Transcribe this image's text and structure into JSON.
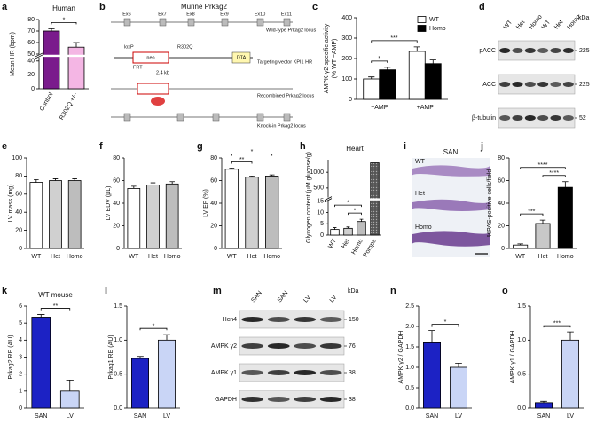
{
  "chart_data": [
    {
      "panel": "a",
      "type": "bar",
      "title": "Human",
      "ylabel": [
        "Mean HR (bpm)"
      ],
      "categories": [
        "Control",
        "R302Q +/−"
      ],
      "values": [
        70,
        56
      ],
      "errors": [
        2,
        4
      ],
      "colors": [
        "#7a1b8c",
        "#f4b6e4"
      ],
      "ylim": [
        0,
        80
      ],
      "axis_break": [
        45,
        50
      ],
      "yticks": [
        0,
        20,
        40,
        50,
        60,
        70,
        80
      ],
      "comparisons": [
        {
          "pair": [
            0,
            1
          ],
          "label": "*"
        }
      ]
    },
    {
      "panel": "c",
      "type": "bar",
      "ylabel": [
        "AMPK-γ2-specific activity",
        "(% WT −AMP)"
      ],
      "categories": [
        "−AMP",
        "+AMP"
      ],
      "series": [
        {
          "name": "WT",
          "color": "#ffffff",
          "values": [
            100,
            235
          ],
          "errors": [
            10,
            22
          ]
        },
        {
          "name": "Homo",
          "color": "#000000",
          "values": [
            145,
            175
          ],
          "errors": [
            12,
            18
          ]
        }
      ],
      "ylim": [
        0,
        400
      ],
      "yticks": [
        0,
        100,
        200,
        300,
        400
      ],
      "legend": "top-right",
      "comparisons": [
        {
          "pair": [
            0,
            1
          ],
          "label": "*"
        },
        {
          "pair": [
            0,
            2
          ],
          "label": "***"
        }
      ]
    },
    {
      "panel": "e",
      "type": "bar",
      "ylabel": [
        "LV mass (mg)"
      ],
      "categories": [
        "WT",
        "Het",
        "Homo"
      ],
      "values": [
        73,
        75,
        75
      ],
      "errors": [
        3,
        2,
        2
      ],
      "colors": [
        "#ffffff",
        "#d0d0d0",
        "#bdbdbd"
      ],
      "ylim": [
        0,
        100
      ],
      "yticks": [
        0,
        20,
        40,
        60,
        80,
        100
      ],
      "comparisons": []
    },
    {
      "panel": "f",
      "type": "bar",
      "ylabel": [
        "LV EDV (µL)"
      ],
      "categories": [
        "WT",
        "Het",
        "Homo"
      ],
      "values": [
        53,
        56,
        57
      ],
      "errors": [
        2,
        2,
        2
      ],
      "colors": [
        "#ffffff",
        "#d0d0d0",
        "#bdbdbd"
      ],
      "ylim": [
        0,
        80
      ],
      "yticks": [
        0,
        20,
        40,
        60,
        80
      ],
      "comparisons": []
    },
    {
      "panel": "g",
      "type": "bar",
      "ylabel": [
        "LV EF (%)"
      ],
      "categories": [
        "WT",
        "Het",
        "Homo"
      ],
      "values": [
        70,
        63,
        64
      ],
      "errors": [
        1,
        1,
        1
      ],
      "colors": [
        "#ffffff",
        "#d0d0d0",
        "#bdbdbd"
      ],
      "ylim": [
        0,
        80
      ],
      "yticks": [
        0,
        20,
        40,
        60,
        80
      ],
      "comparisons": [
        {
          "pair": [
            0,
            1
          ],
          "label": "**"
        },
        {
          "pair": [
            0,
            2
          ],
          "label": "*"
        }
      ]
    },
    {
      "panel": "h",
      "type": "bar",
      "title": "Heart",
      "ylabel": [
        "Glycogen content (µM glucose/g)"
      ],
      "categories": [
        "WT",
        "Het",
        "Homo",
        "Pompe"
      ],
      "values": [
        2.5,
        3,
        6,
        1300
      ],
      "errors": [
        0.8,
        0.6,
        1,
        0
      ],
      "colors": [
        "#ffffff",
        "#d0d0d0",
        "#bdbdbd",
        "#555555"
      ],
      "hatched": [
        false,
        false,
        false,
        true
      ],
      "ylim": [
        0,
        1400
      ],
      "axis_break": [
        15,
        200
      ],
      "yticks": [
        0,
        5,
        10,
        15,
        500,
        1000
      ],
      "comparisons": [
        {
          "pair": [
            1,
            2
          ],
          "label": "*"
        },
        {
          "pair": [
            0,
            2
          ],
          "label": "*"
        }
      ]
    },
    {
      "panel": "j",
      "type": "bar",
      "ylabel": [
        "%PAS-positive cells/field"
      ],
      "categories": [
        "WT",
        "Het",
        "Homo"
      ],
      "values": [
        3,
        22,
        54
      ],
      "errors": [
        1,
        3,
        5
      ],
      "colors": [
        "#ffffff",
        "#c8c8c8",
        "#000000"
      ],
      "ylim": [
        0,
        80
      ],
      "yticks": [
        0,
        20,
        40,
        60,
        80
      ],
      "comparisons": [
        {
          "pair": [
            0,
            1
          ],
          "label": "***"
        },
        {
          "pair": [
            1,
            2
          ],
          "label": "****"
        },
        {
          "pair": [
            0,
            2
          ],
          "label": "****"
        }
      ]
    },
    {
      "panel": "k",
      "type": "bar",
      "title": "WT mouse",
      "ylabel": [
        "Prkag2 RE (AU)"
      ],
      "categories": [
        "SAN",
        "LV"
      ],
      "values": [
        5.35,
        1.0
      ],
      "errors": [
        0.15,
        0.65
      ],
      "colors": [
        "#1c22c4",
        "#c9d5f6"
      ],
      "ylim": [
        0,
        6
      ],
      "yticks": [
        0,
        1,
        2,
        3,
        4,
        5,
        6
      ],
      "comparisons": [
        {
          "pair": [
            0,
            1
          ],
          "label": "**"
        }
      ]
    },
    {
      "panel": "l",
      "type": "bar",
      "ylabel": [
        "Prkag1 RE (AU)"
      ],
      "categories": [
        "SAN",
        "LV"
      ],
      "values": [
        0.73,
        1.0
      ],
      "errors": [
        0.03,
        0.08
      ],
      "colors": [
        "#1c22c4",
        "#c9d5f6"
      ],
      "ylim": [
        0,
        1.5
      ],
      "yticks": [
        {
          "value": 0,
          "label": "0.0"
        },
        0.5,
        {
          "value": 1,
          "label": "1.0"
        },
        1.5
      ],
      "comparisons": [
        {
          "pair": [
            0,
            1
          ],
          "label": "*"
        }
      ]
    },
    {
      "panel": "n",
      "type": "bar",
      "ylabel": [
        "AMPK γ2 / GAPDH"
      ],
      "categories": [
        "SAN",
        "LV"
      ],
      "values": [
        1.6,
        1.0
      ],
      "errors": [
        0.3,
        0.1
      ],
      "colors": [
        "#1c22c4",
        "#c9d5f6"
      ],
      "ylim": [
        0,
        2.5
      ],
      "yticks": [
        {
          "value": 0,
          "label": "0.0"
        },
        0.5,
        {
          "value": 1,
          "label": "1.0"
        },
        1.5,
        {
          "value": 2,
          "label": "2.0"
        },
        2.5
      ],
      "comparisons": [
        {
          "pair": [
            0,
            1
          ],
          "label": "*"
        }
      ]
    },
    {
      "panel": "o",
      "type": "bar",
      "ylabel": [
        "AMPK γ1 / GAPDH"
      ],
      "categories": [
        "SAN",
        "LV"
      ],
      "values": [
        0.08,
        1.0
      ],
      "errors": [
        0.02,
        0.12
      ],
      "colors": [
        "#1c22c4",
        "#c9d5f6"
      ],
      "ylim": [
        0,
        1.5
      ],
      "yticks": [
        {
          "value": 0,
          "label": "0.0"
        },
        0.5,
        {
          "value": 1,
          "label": "1.0"
        },
        1.5
      ],
      "comparisons": [
        {
          "pair": [
            0,
            1
          ],
          "label": "***"
        }
      ]
    }
  ],
  "diagram": {
    "panel": "b",
    "title": "Murine Prkag2",
    "exons": [
      "Ex6",
      "Ex7",
      "Ex8",
      "Ex9",
      "Ex10",
      "Ex11"
    ],
    "loxp": "loxP",
    "frt": "FRT",
    "mutation": "R302Q",
    "neo": "neo",
    "dta": "DTA",
    "distance": "2.4 kb",
    "loci": [
      "Wild-type Prkag2 locus",
      "Targeting vector KPI1 HR",
      "Recombined Prkag2 locus",
      "Knock-in Prkag2 locus"
    ]
  },
  "blots": [
    {
      "panel": "d",
      "unit": "kDa",
      "lanes": [
        "WT",
        "Het",
        "Homo",
        "WT",
        "Het",
        "Homo"
      ],
      "rows": [
        {
          "name": "pACC",
          "kda": "225"
        },
        {
          "name": "ACC",
          "kda": "225"
        },
        {
          "name": "β-tubulin",
          "kda": "52"
        }
      ]
    },
    {
      "panel": "m",
      "unit": "kDa",
      "lanes": [
        "SAN",
        "SAN",
        "LV",
        "LV"
      ],
      "rows": [
        {
          "name": "Hcn4",
          "kda": "150"
        },
        {
          "name": "AMPK γ2",
          "kda": "76"
        },
        {
          "name": "AMPK γ1",
          "kda": "38"
        },
        {
          "name": "GAPDH",
          "kda": "38"
        }
      ]
    }
  ],
  "histology": {
    "panel": "i",
    "title": "SAN",
    "rows": [
      "WT",
      "Het",
      "Homo"
    ]
  }
}
